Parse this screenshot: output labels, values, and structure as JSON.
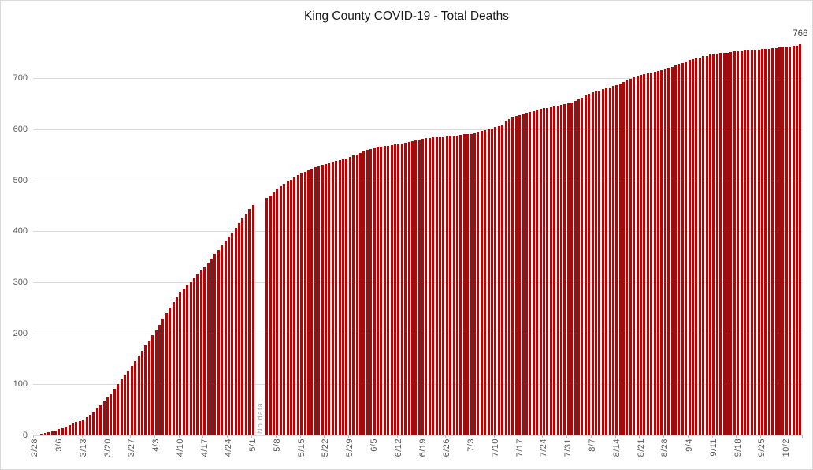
{
  "chart_data": {
    "type": "bar",
    "title": "King County COVID-19 - Total Deaths",
    "ylabel": "",
    "xlabel": "",
    "ylim": [
      0,
      783
    ],
    "y_ticks": [
      0,
      100,
      200,
      300,
      400,
      500,
      600,
      700
    ],
    "x_tick_interval": 7,
    "x_tick_labels": [
      "2/28",
      "3/6",
      "3/13",
      "3/20",
      "3/27",
      "4/3",
      "4/10",
      "4/17",
      "4/24",
      "5/1",
      "5/8",
      "5/15",
      "5/22",
      "5/29",
      "6/5",
      "6/12",
      "6/19",
      "6/26",
      "7/3",
      "7/10",
      "7/17",
      "7/24",
      "7/31",
      "8/7",
      "8/14",
      "8/21",
      "8/28",
      "9/4",
      "9/11",
      "9/18",
      "9/25",
      "10/2"
    ],
    "values": [
      1,
      2,
      3,
      4,
      6,
      8,
      10,
      12,
      14,
      17,
      20,
      23,
      26,
      28,
      30,
      35,
      40,
      46,
      53,
      60,
      67,
      74,
      82,
      91,
      100,
      109,
      118,
      127,
      136,
      146,
      156,
      166,
      176,
      186,
      196,
      205,
      217,
      229,
      240,
      251,
      261,
      271,
      281,
      288,
      295,
      302,
      309,
      316,
      323,
      330,
      338,
      346,
      355,
      363,
      372,
      380,
      389,
      398,
      407,
      416,
      425,
      434,
      443,
      452,
      null,
      null,
      null,
      465,
      470,
      476,
      483,
      488,
      493,
      497,
      501,
      505,
      510,
      514,
      517,
      520,
      523,
      525,
      527,
      530,
      532,
      534,
      536,
      538,
      540,
      542,
      543,
      545,
      548,
      551,
      554,
      557,
      559,
      561,
      563,
      565,
      566,
      567,
      568,
      569,
      570,
      571,
      572,
      574,
      575,
      577,
      578,
      580,
      581,
      582,
      583,
      584,
      584,
      585,
      585,
      586,
      587,
      588,
      588,
      589,
      590,
      590,
      591,
      592,
      594,
      596,
      598,
      600,
      602,
      604,
      606,
      607,
      617,
      620,
      623,
      626,
      628,
      630,
      632,
      634,
      636,
      638,
      640,
      641,
      642,
      643,
      645,
      646,
      647,
      649,
      650,
      653,
      656,
      659,
      662,
      666,
      669,
      672,
      674,
      676,
      678,
      680,
      682,
      684,
      686,
      689,
      692,
      695,
      698,
      701,
      704,
      706,
      708,
      710,
      711,
      713,
      714,
      716,
      717,
      720,
      722,
      725,
      728,
      730,
      733,
      735,
      737,
      739,
      741,
      743,
      744,
      746,
      747,
      748,
      749,
      750,
      750,
      751,
      752,
      752,
      753,
      754,
      754,
      755,
      756,
      756,
      757,
      758,
      758,
      759,
      759,
      760,
      760,
      761,
      762,
      763,
      764,
      766
    ],
    "no_data_label": "No data",
    "last_value_label": "766",
    "legend": "none",
    "grid": "horizontal",
    "colors": {
      "bar": "#c00000",
      "gridline": "#d9d9d9",
      "axis_line": "#d9d9d9",
      "tick_mark": "#bfbfbf",
      "axis_text": "#595959",
      "no_data_text": "#a6a6a6",
      "data_label_text": "#404040",
      "title_text": "#1a1a1a"
    }
  }
}
